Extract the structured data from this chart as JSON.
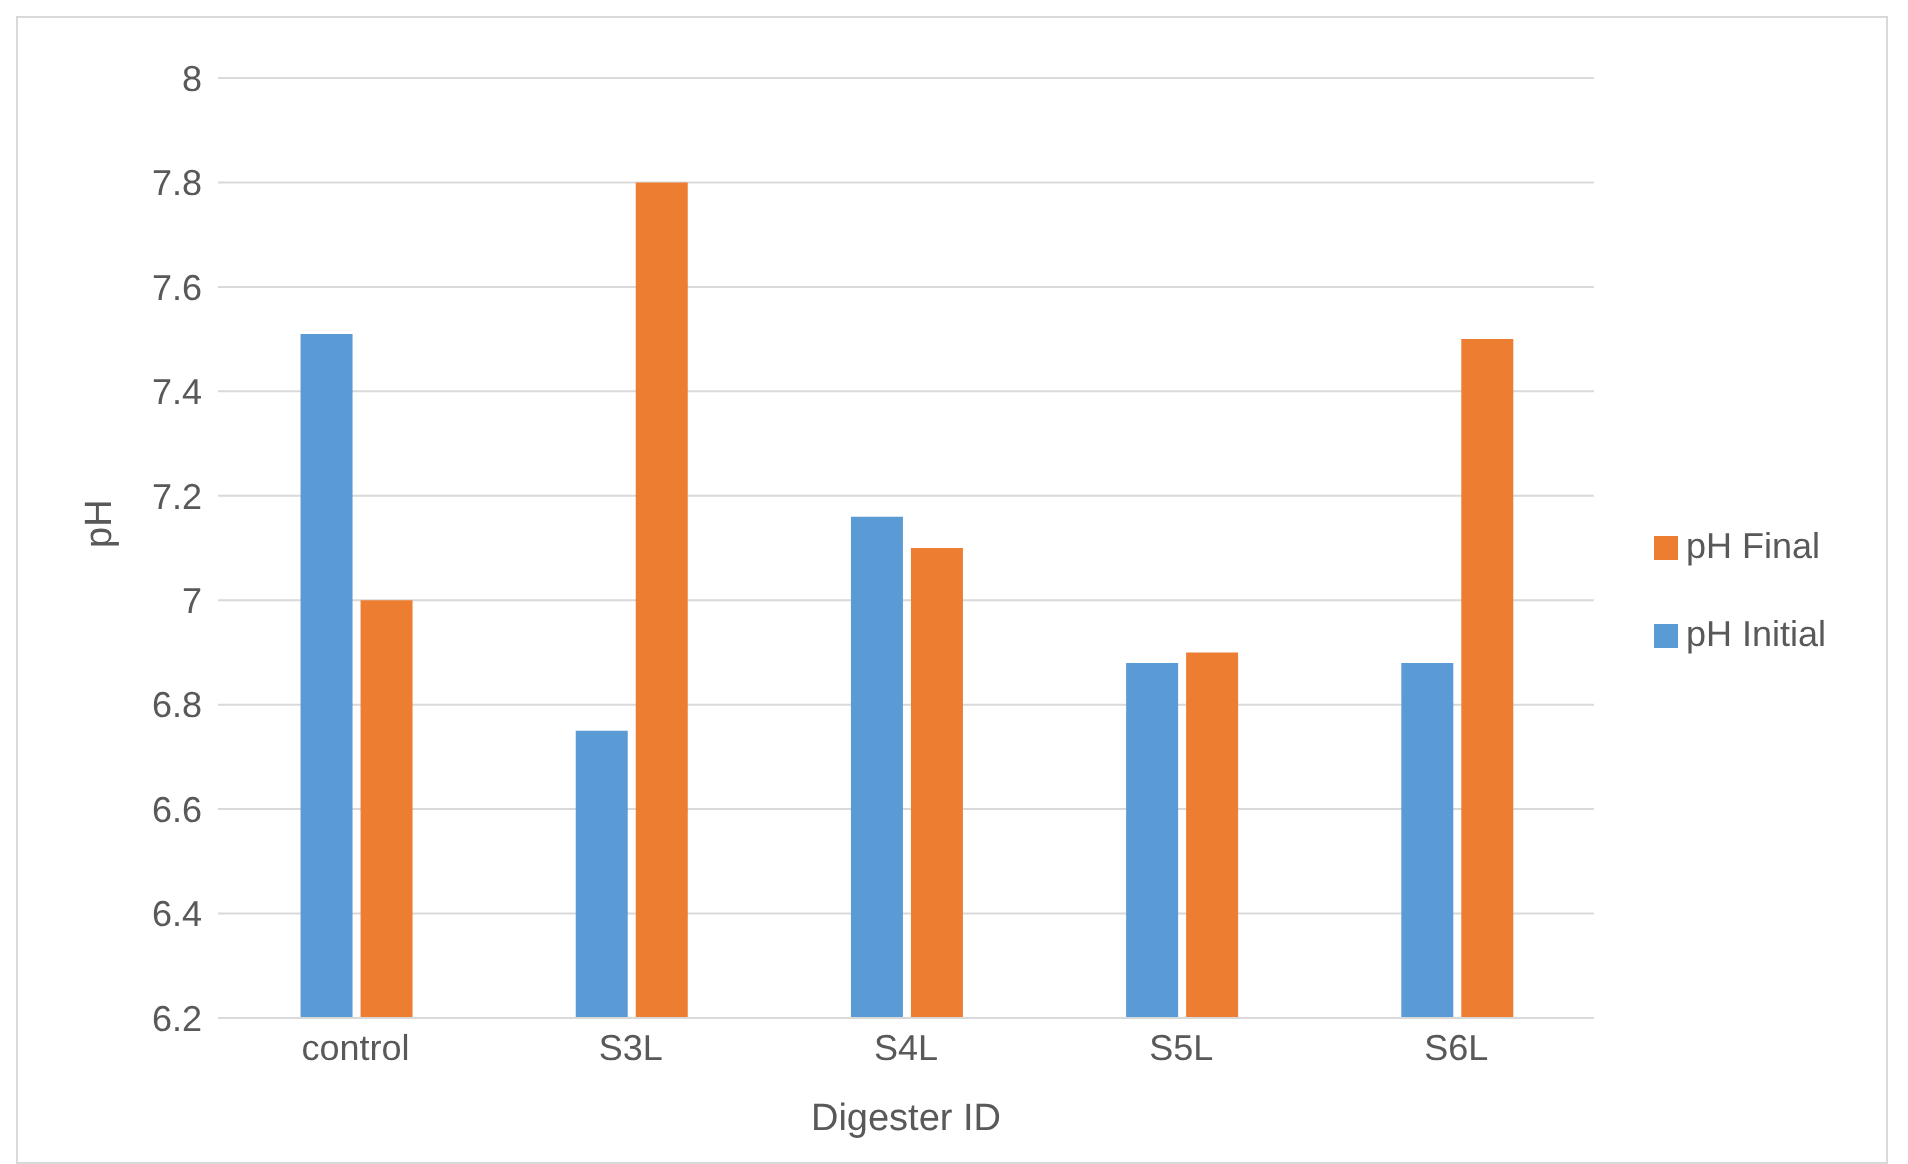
{
  "chart_data": {
    "type": "bar",
    "xlabel": "Digester ID",
    "ylabel": "pH",
    "categories": [
      "control",
      "S3L",
      "S4L",
      "S5L",
      "S6L"
    ],
    "series": [
      {
        "name": "pH  Initial",
        "color": "#5b9bd5",
        "values": [
          7.51,
          6.75,
          7.16,
          6.88,
          6.88
        ]
      },
      {
        "name": "pH  Final",
        "color": "#ed7d31",
        "values": [
          7.0,
          7.8,
          7.1,
          6.9,
          7.5
        ]
      }
    ],
    "ylim": [
      6.2,
      8
    ],
    "yticks": [
      6.2,
      6.4,
      6.6,
      6.8,
      7,
      7.2,
      7.4,
      7.6,
      7.8,
      8
    ],
    "grid": "y",
    "legend": "right"
  }
}
